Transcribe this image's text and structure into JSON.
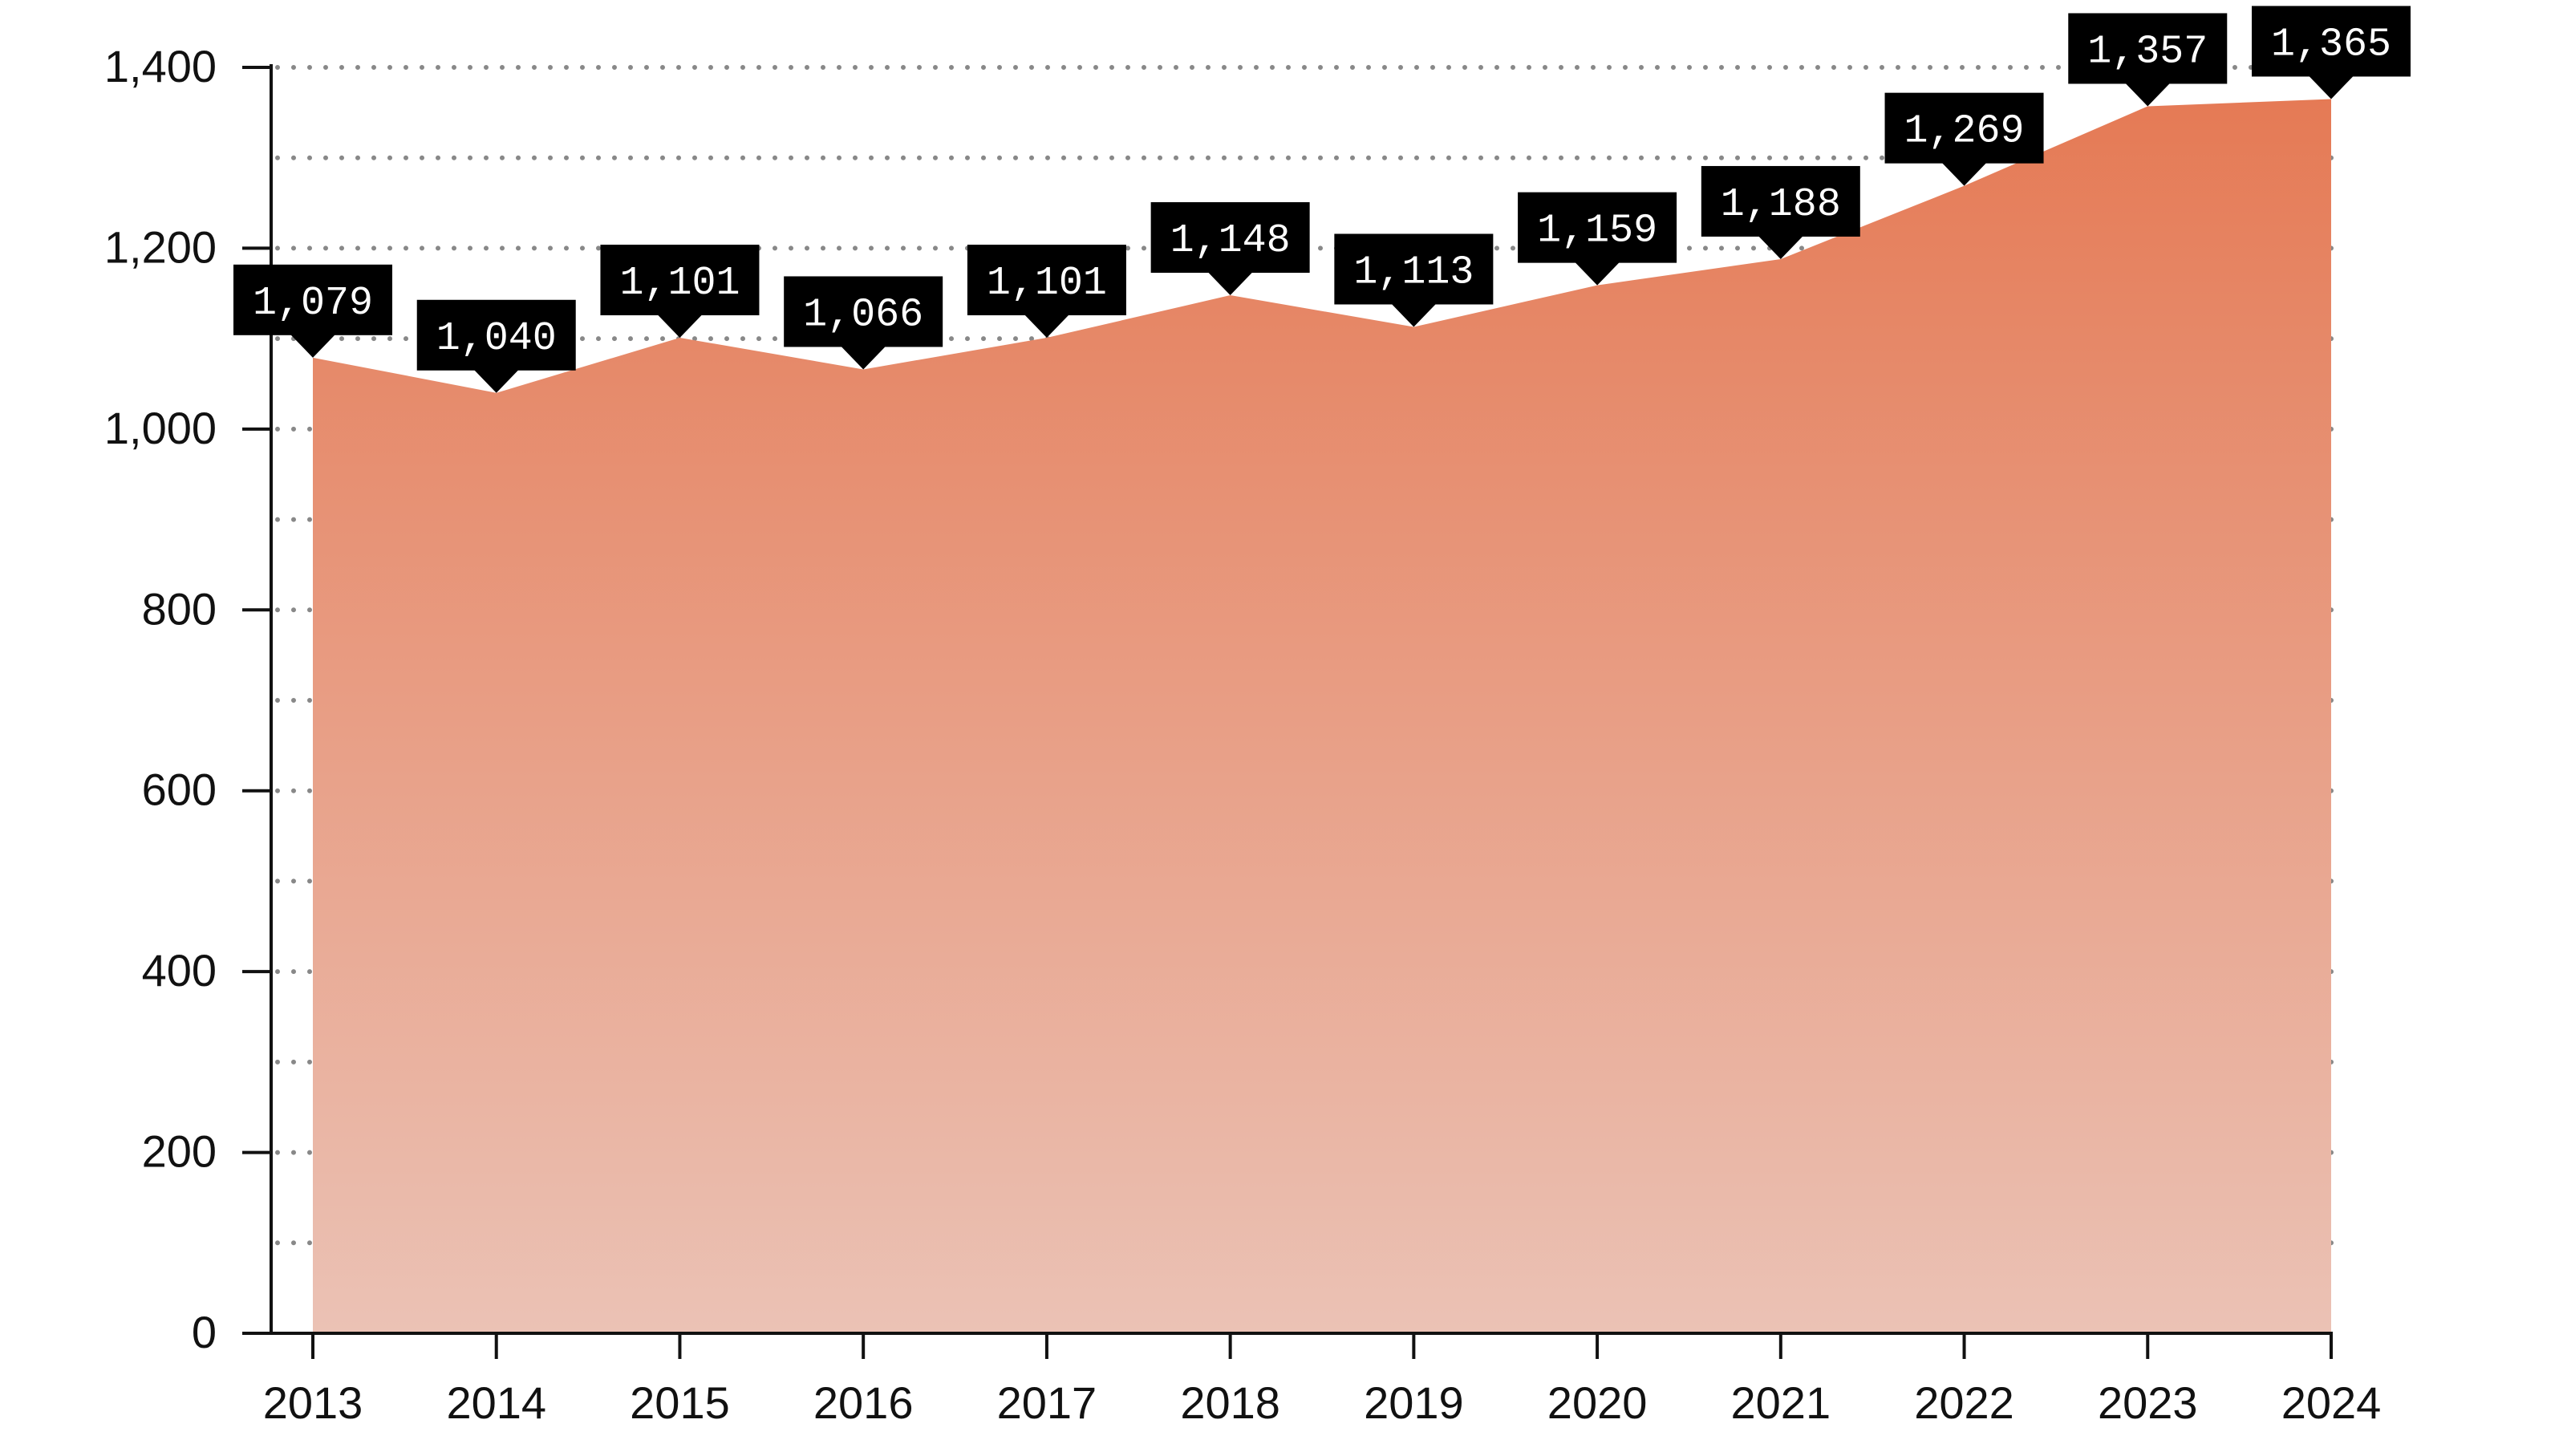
{
  "chart_data": {
    "type": "area",
    "title": "",
    "xlabel": "",
    "ylabel": "",
    "categories": [
      "2013",
      "2014",
      "2015",
      "2016",
      "2017",
      "2018",
      "2019",
      "2020",
      "2021",
      "2022",
      "2023",
      "2024"
    ],
    "values": [
      1079,
      1040,
      1101,
      1066,
      1101,
      1148,
      1113,
      1159,
      1188,
      1269,
      1357,
      1365
    ],
    "data_labels": [
      "1,079",
      "1,040",
      "1,101",
      "1,066",
      "1,101",
      "1,148",
      "1,113",
      "1,159",
      "1,188",
      "1,269",
      "1,357",
      "1,365"
    ],
    "ylim": [
      0,
      1400
    ],
    "yticks": [
      0,
      200,
      400,
      600,
      800,
      1000,
      1200,
      1400
    ],
    "ytick_labels": [
      "0",
      "200",
      "400",
      "600",
      "800",
      "1,000",
      "1,200",
      "1,400"
    ],
    "gridlines": "dotted",
    "grid_step": 100,
    "legend": "none",
    "colors": {
      "area_top": "#E57A55",
      "area_bottom": "#EBC2B5",
      "label_bg": "#000000",
      "label_text": "#ffffff",
      "grid": "#888888",
      "axis": "#111111"
    }
  }
}
